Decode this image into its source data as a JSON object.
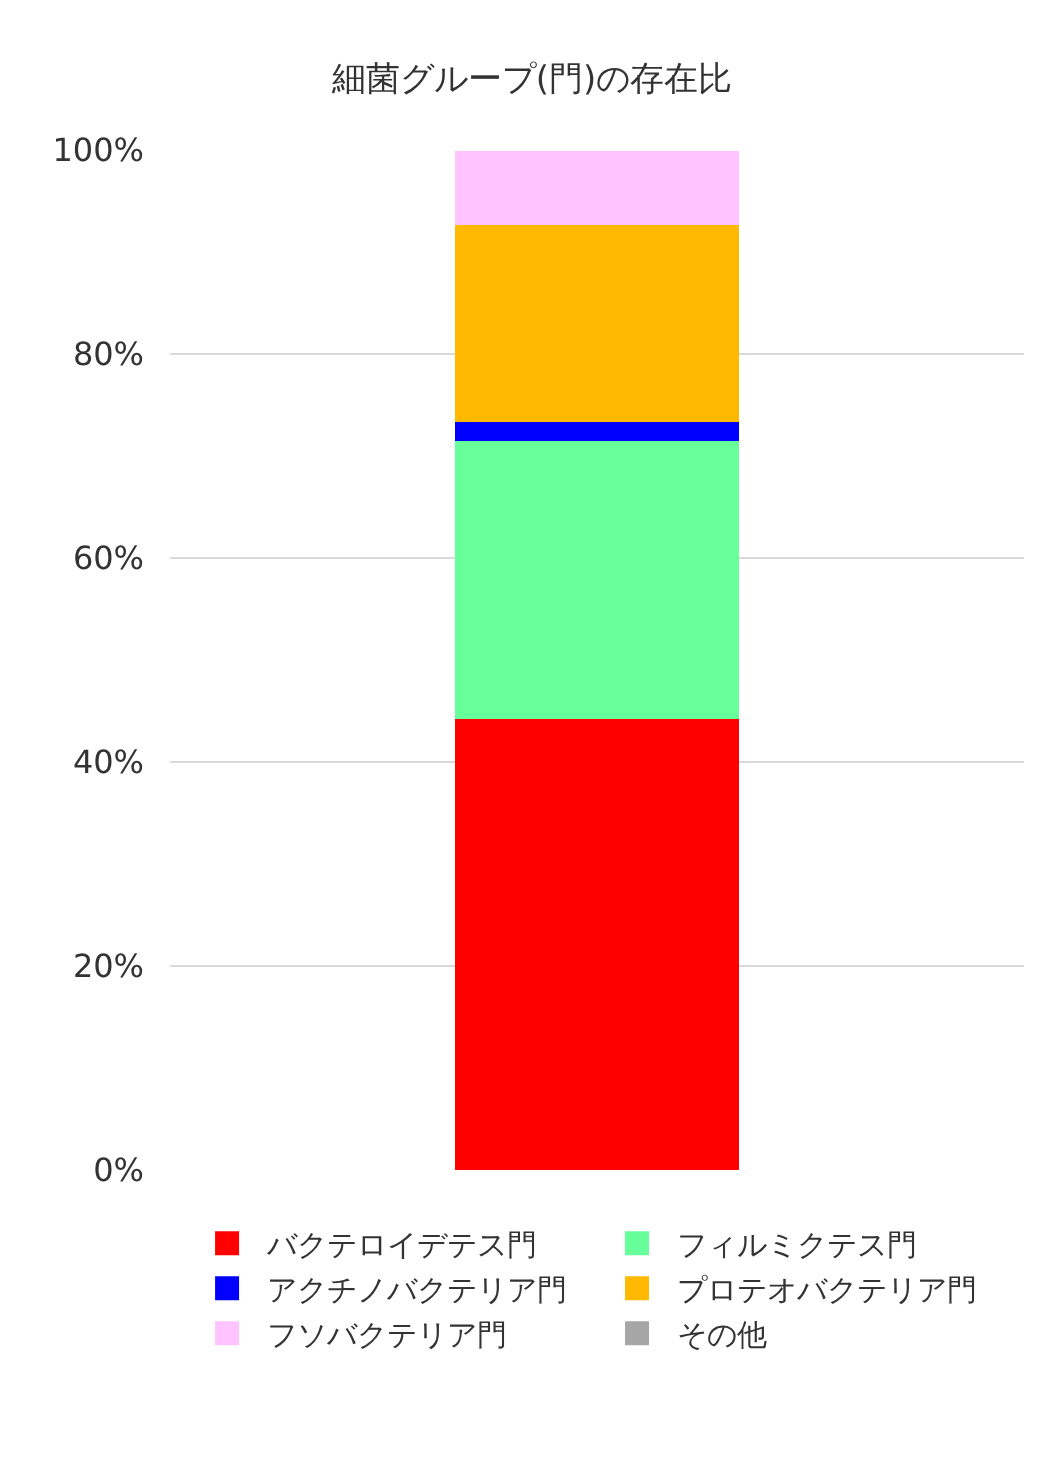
{
  "chart_data": {
    "type": "bar",
    "title": "細菌グループ(門)の存在比",
    "stacked": true,
    "categories": [
      null
    ],
    "series": [
      {
        "name": "バクテロイデテス門",
        "color": "#ff0000",
        "values": [
          44.2
        ]
      },
      {
        "name": "フィルミクテス門",
        "color": "#66ff99",
        "values": [
          27.3
        ]
      },
      {
        "name": "アクチノバクテリア門",
        "color": "#0000ff",
        "values": [
          1.8
        ]
      },
      {
        "name": "プロテオバクテリア門",
        "color": "#ffb900",
        "values": [
          19.3
        ]
      },
      {
        "name": "フソバクテリア門",
        "color": "#ffc4ff",
        "values": [
          7.3
        ]
      },
      {
        "name": "その他",
        "color": "#a6a6a6",
        "values": [
          null
        ]
      }
    ],
    "ylim": [
      0,
      100
    ],
    "yticks": [
      {
        "value": 0,
        "label": "0%"
      },
      {
        "value": 20,
        "label": "20%"
      },
      {
        "value": 40,
        "label": "40%"
      },
      {
        "value": 60,
        "label": "60%"
      },
      {
        "value": 80,
        "label": "80%"
      },
      {
        "value": 100,
        "label": "100%"
      }
    ],
    "grid": "y",
    "legend": "bottom"
  }
}
